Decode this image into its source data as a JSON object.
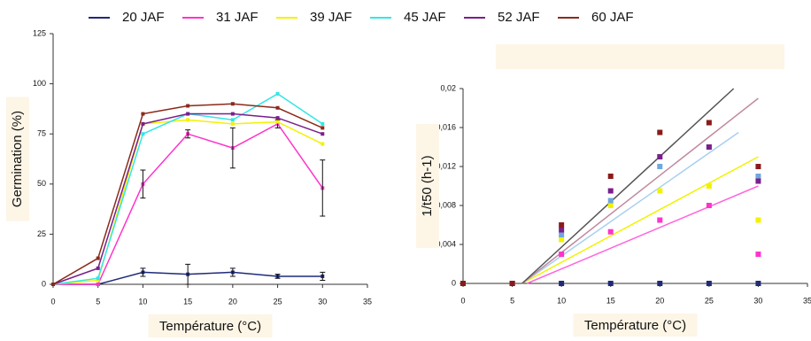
{
  "chart_data": [
    {
      "type": "line",
      "x_label": "Température (°C)",
      "y_label": "Germination (%)",
      "x": [
        0,
        5,
        10,
        15,
        20,
        25,
        30
      ],
      "xlim": [
        0,
        35
      ],
      "xticks": [
        0,
        5,
        10,
        15,
        20,
        25,
        30,
        35
      ],
      "ylim": [
        0,
        125
      ],
      "yticks": [
        0,
        25,
        50,
        75,
        100,
        125
      ],
      "series": [
        {
          "name": "20 JAF",
          "color": "#1f2a7a",
          "values": [
            0,
            0,
            6,
            5,
            6,
            4,
            4
          ],
          "errors": [
            0,
            0,
            2,
            5,
            2,
            1,
            2
          ]
        },
        {
          "name": "31 JAF",
          "color": "#ff33cc",
          "values": [
            0,
            0,
            50,
            75,
            68,
            80,
            48
          ],
          "errors": [
            0,
            0,
            7,
            2,
            10,
            2,
            14
          ]
        },
        {
          "name": "39 JAF",
          "color": "#f2f200",
          "values": [
            0,
            2,
            80,
            82,
            80,
            81,
            70
          ]
        },
        {
          "name": "45 JAF",
          "color": "#33e6e6",
          "values": [
            0,
            3,
            75,
            85,
            82,
            95,
            80
          ]
        },
        {
          "name": "52 JAF",
          "color": "#7a1f8c",
          "values": [
            0,
            8,
            80,
            85,
            85,
            83,
            75
          ]
        },
        {
          "name": "60 JAF",
          "color": "#8b2a1a",
          "values": [
            0,
            13,
            85,
            89,
            90,
            88,
            78
          ]
        }
      ]
    },
    {
      "type": "scatter",
      "x_label": "Température (°C)",
      "y_label": "1/t50 (h-1)",
      "x": [
        0,
        5,
        10,
        15,
        20,
        25,
        30
      ],
      "xlim": [
        0,
        35
      ],
      "xticks": [
        0,
        5,
        10,
        15,
        20,
        25,
        30,
        35
      ],
      "ylim": [
        0,
        0.02
      ],
      "yticks": [
        0,
        {
          "value": 0.004,
          "label": "0,004"
        },
        {
          "value": 0.008,
          "label": "0,008"
        },
        {
          "value": 0.012,
          "label": "0,012"
        },
        {
          "value": 0.016,
          "label": "0,016"
        },
        {
          "value": 0.02,
          "label": "0,02"
        }
      ],
      "series": [
        {
          "color": "#1f2a7a",
          "values": [
            0,
            0,
            0,
            0,
            0,
            0,
            0
          ]
        },
        {
          "color": "#ff33cc",
          "values": [
            0,
            0,
            0.003,
            0.0053,
            0.0065,
            0.008,
            0.003
          ]
        },
        {
          "color": "#f2f200",
          "values": [
            0,
            0,
            0.0045,
            0.008,
            0.0095,
            0.01,
            0.0065
          ]
        },
        {
          "color": "#6fa8dc",
          "values": [
            0,
            0,
            0.005,
            0.0085,
            0.012,
            0.014,
            0.011
          ]
        },
        {
          "color": "#7a1f8c",
          "values": [
            0,
            0,
            0.0055,
            0.0095,
            0.013,
            0.014,
            0.0105
          ]
        },
        {
          "color": "#8b1a1a",
          "values": [
            0,
            0,
            0.006,
            0.011,
            0.0155,
            0.0165,
            0.012
          ]
        }
      ],
      "fits": [
        {
          "color": "#ff66dd",
          "x": [
            6.5,
            30
          ],
          "values": [
            0,
            0.01
          ]
        },
        {
          "color": "#f2f200",
          "x": [
            6,
            30
          ],
          "values": [
            0,
            0.013
          ]
        },
        {
          "color": "#a8d0f0",
          "x": [
            6,
            28
          ],
          "values": [
            0,
            0.0155
          ]
        },
        {
          "color": "#c08aa0",
          "x": [
            6,
            30
          ],
          "values": [
            0,
            0.019
          ]
        },
        {
          "color": "#555555",
          "x": [
            6,
            27.5
          ],
          "values": [
            0,
            0.02
          ]
        }
      ]
    }
  ]
}
